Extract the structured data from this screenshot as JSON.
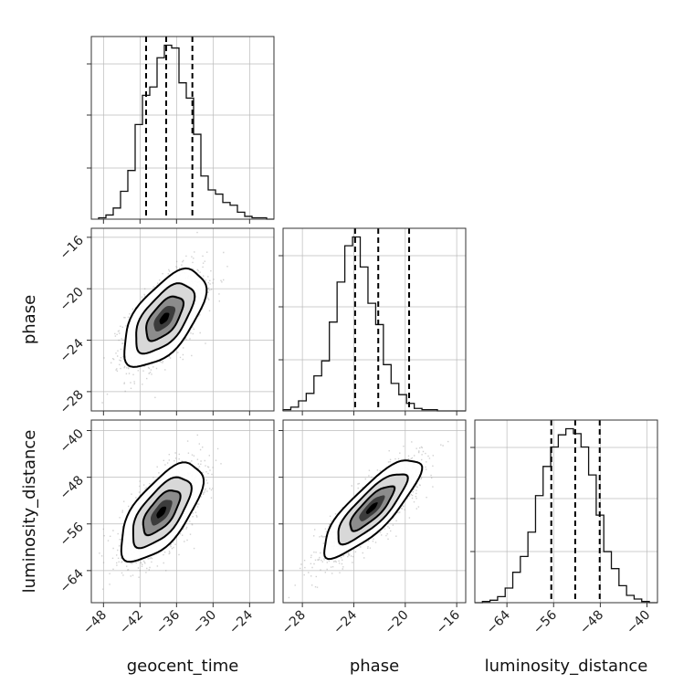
{
  "chart_data": {
    "type": "corner",
    "parameters": [
      "geocent_time",
      "phase",
      "luminosity_distance"
    ],
    "ranges": {
      "geocent_time": [
        -50,
        -20
      ],
      "phase": [
        -29.5,
        -15.3
      ],
      "luminosity_distance": [
        -69.5,
        -38.2
      ]
    },
    "ticks": {
      "geocent_time": [
        -48,
        -42,
        -36,
        -30,
        -24
      ],
      "phase": [
        -28,
        -24,
        -20,
        -16
      ],
      "luminosity_distance": [
        -64,
        -56,
        -48,
        -40
      ]
    },
    "quantiles": {
      "geocent_time": [
        -41.0,
        -37.7,
        -33.4
      ],
      "phase": [
        -23.9,
        -22.1,
        -19.7
      ],
      "luminosity_distance": [
        -56.4,
        -52.3,
        -48.1
      ]
    },
    "histograms": {
      "geocent_time": {
        "edges": [
          -48.8,
          -47.6,
          -46.4,
          -45.2,
          -44.0,
          -42.8,
          -41.6,
          -40.4,
          -39.2,
          -38.0,
          -36.8,
          -35.6,
          -34.4,
          -33.2,
          -32.0,
          -30.8,
          -29.6,
          -28.4,
          -27.2,
          -26.0,
          -24.8,
          -23.6,
          -22.4,
          -21.2,
          -20.0
        ],
        "values": [
          1,
          3,
          8,
          20,
          35,
          68,
          89,
          95,
          116,
          125,
          123,
          98,
          87,
          61,
          31,
          21,
          18,
          12,
          10,
          5,
          2,
          1,
          1,
          0
        ]
      },
      "phase": {
        "edges": [
          -29.5,
          -28.9,
          -28.3,
          -27.7,
          -27.1,
          -26.5,
          -25.9,
          -25.3,
          -24.7,
          -24.1,
          -23.5,
          -22.9,
          -22.3,
          -21.7,
          -21.1,
          -20.5,
          -19.9,
          -19.3,
          -18.7,
          -18.1,
          -17.5,
          -16.9,
          -16.3,
          -15.7,
          -15.3
        ],
        "values": [
          1,
          3,
          8,
          14,
          28,
          40,
          71,
          103,
          132,
          139,
          115,
          86,
          69,
          37,
          22,
          13,
          6,
          2,
          1,
          1,
          0,
          0,
          0,
          0
        ]
      },
      "luminosity_distance": {
        "edges": [
          -69.5,
          -68.2,
          -66.9,
          -65.6,
          -64.3,
          -63.0,
          -61.7,
          -60.4,
          -59.1,
          -57.8,
          -56.5,
          -55.2,
          -53.9,
          -52.6,
          -51.3,
          -50.0,
          -48.7,
          -47.4,
          -46.1,
          -44.8,
          -43.5,
          -42.2,
          -40.9,
          -39.6,
          -38.2
        ],
        "values": [
          0,
          1,
          2,
          5,
          12,
          25,
          38,
          58,
          88,
          112,
          128,
          138,
          143,
          139,
          128,
          105,
          72,
          42,
          28,
          14,
          6,
          3,
          1,
          0
        ]
      }
    },
    "pairs": [
      {
        "x": "geocent_time",
        "y": "phase",
        "center": [
          -38.0,
          -22.3
        ],
        "sigma": [
          3.2,
          1.8
        ],
        "correlation": 0.6
      },
      {
        "x": "geocent_time",
        "y": "luminosity_distance",
        "center": [
          -38.5,
          -54.0
        ],
        "sigma": [
          3.2,
          4.0
        ],
        "correlation": 0.65
      },
      {
        "x": "phase",
        "y": "luminosity_distance",
        "center": [
          -22.6,
          -53.3
        ],
        "sigma": [
          1.8,
          4.0
        ],
        "correlation": 0.82
      }
    ],
    "grid": true
  },
  "labels": {
    "x_geocent_time": "geocent_time",
    "x_phase": "phase",
    "x_luminosity_distance": "luminosity_distance",
    "y_phase": "phase",
    "y_luminosity_distance": "luminosity_distance"
  }
}
